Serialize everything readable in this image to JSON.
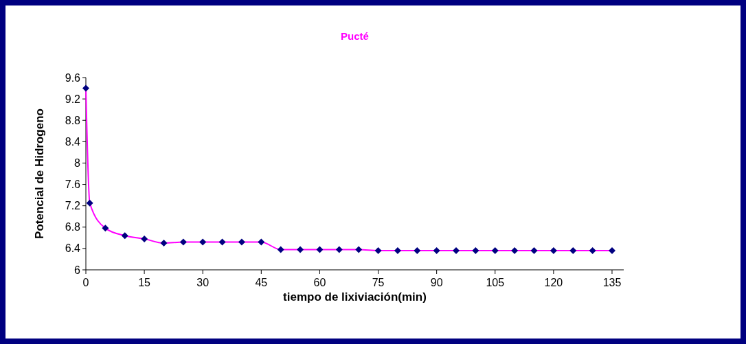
{
  "chart_data": {
    "type": "line",
    "title": "Pucté",
    "xlabel": "tiempo de lixiviación(min)",
    "ylabel": "Potencial de Hidrogeno",
    "x": [
      0,
      1,
      5,
      10,
      15,
      20,
      25,
      30,
      35,
      40,
      45,
      50,
      55,
      60,
      65,
      70,
      75,
      80,
      85,
      90,
      95,
      100,
      105,
      110,
      115,
      120,
      125,
      130,
      135
    ],
    "series": [
      {
        "color": "#ff00ff",
        "values": [
          9.4,
          7.25,
          6.78,
          6.64,
          6.58,
          6.5,
          6.52,
          6.52,
          6.52,
          6.52,
          6.52,
          6.38,
          6.38,
          6.38,
          6.38,
          6.38,
          6.36,
          6.36,
          6.36,
          6.36,
          6.36,
          6.36,
          6.36,
          6.36,
          6.36,
          6.36,
          6.36,
          6.36,
          6.36
        ]
      }
    ],
    "marker": "diamond",
    "xlim": [
      0,
      138
    ],
    "xticks": [
      0,
      15,
      30,
      45,
      60,
      75,
      90,
      105,
      120,
      135
    ],
    "ylim": [
      6,
      9.6
    ],
    "yticks": [
      6,
      6.4,
      6.8,
      7.2,
      7.6,
      8,
      8.4,
      8.8,
      9.2,
      9.6
    ]
  }
}
